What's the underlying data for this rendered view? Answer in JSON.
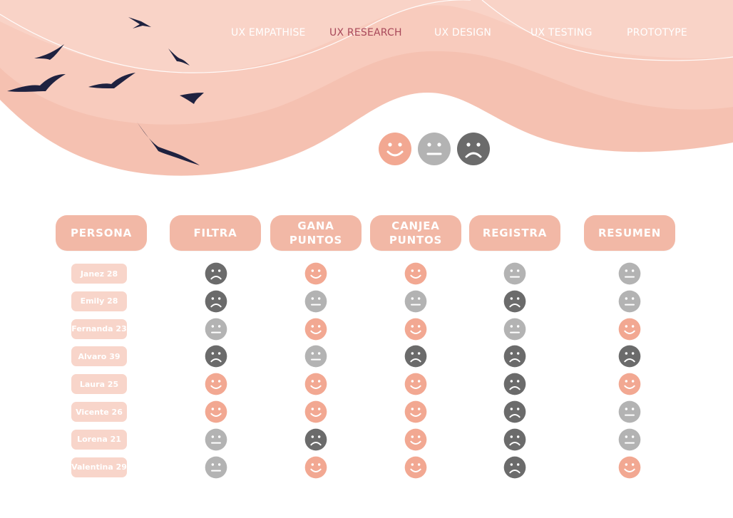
{
  "nav": {
    "items": [
      {
        "label": "UX EMPATHISE",
        "active": false
      },
      {
        "label": "UX RESEARCH",
        "active": true
      },
      {
        "label": "UX DESIGN",
        "active": false
      },
      {
        "label": "UX TESTING",
        "active": false
      },
      {
        "label": "PROTOTYPE",
        "active": false
      }
    ]
  },
  "legend": [
    "happy",
    "neutral",
    "sad"
  ],
  "colors": {
    "happy": "#f2a892",
    "neutral": "#b3b3b3",
    "sad": "#6b6b6b",
    "accent": "#f2b8a6",
    "name_bg": "#f8d5ca",
    "active_nav": "#a8485a",
    "bird": "#1f2240"
  },
  "table": {
    "headers": [
      "PERSONA",
      "FILTRA",
      "GANA\nPUNTOS",
      "CANJEA\nPUNTOS",
      "REGISTRA",
      "RESUMEN"
    ],
    "rows": [
      {
        "persona": "Janez 28",
        "moods": [
          "sad",
          "happy",
          "happy",
          "neutral",
          "neutral"
        ]
      },
      {
        "persona": "Emily 28",
        "moods": [
          "sad",
          "neutral",
          "neutral",
          "sad",
          "neutral"
        ]
      },
      {
        "persona": "Fernanda 23",
        "moods": [
          "neutral",
          "happy",
          "happy",
          "neutral",
          "happy"
        ]
      },
      {
        "persona": "Alvaro 39",
        "moods": [
          "sad",
          "neutral",
          "sad",
          "sad",
          "sad"
        ]
      },
      {
        "persona": "Laura 25",
        "moods": [
          "happy",
          "happy",
          "happy",
          "sad",
          "happy"
        ]
      },
      {
        "persona": "Vicente 26",
        "moods": [
          "happy",
          "happy",
          "happy",
          "sad",
          "neutral"
        ]
      },
      {
        "persona": "Lorena 21",
        "moods": [
          "neutral",
          "sad",
          "happy",
          "sad",
          "neutral"
        ]
      },
      {
        "persona": "Valentina 29",
        "moods": [
          "neutral",
          "happy",
          "happy",
          "sad",
          "happy"
        ]
      }
    ]
  }
}
